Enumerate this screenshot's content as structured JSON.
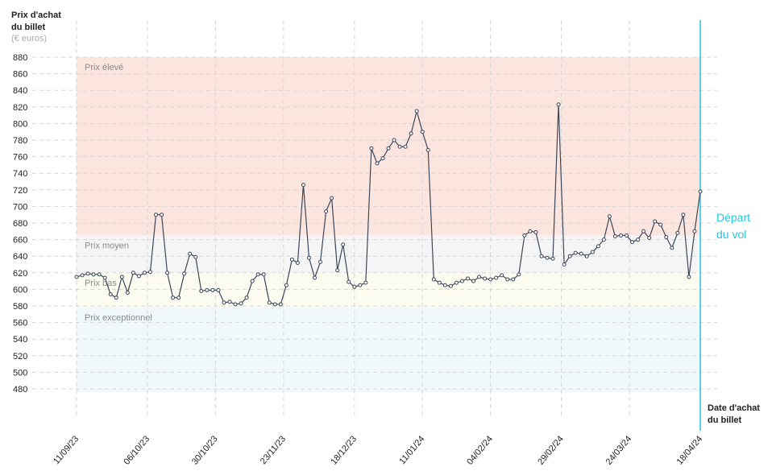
{
  "chart_data": {
    "type": "line",
    "y_label": [
      "Prix d'achat",
      "du billet"
    ],
    "y_unit": "(€ euros)",
    "x_label": [
      "Date d'achat",
      "du billet"
    ],
    "annotation": [
      "Départ",
      "du vol"
    ],
    "departure": "18/04/24",
    "color": "#3b4658",
    "annotation_color": "#29c3de",
    "grid": true,
    "bands": [
      {
        "label": "Prix élevé",
        "from": 665,
        "to": 880,
        "color": "#fde5df"
      },
      {
        "label": "Prix moyen",
        "from": 620,
        "to": 665,
        "color": "#f5f5f5"
      },
      {
        "label": "Prix bas",
        "from": 578,
        "to": 620,
        "color": "#fbfbef"
      },
      {
        "label": "Prix exceptionnel",
        "from": 476,
        "to": 578,
        "color": "#f0f8fc"
      }
    ],
    "ylim": [
      480,
      880
    ],
    "yticks": [
      480,
      500,
      520,
      540,
      560,
      580,
      600,
      620,
      640,
      660,
      680,
      700,
      720,
      740,
      760,
      780,
      800,
      820,
      840,
      860,
      880
    ],
    "xlim": [
      "11/09/23",
      "18/04/24"
    ],
    "xticks": [
      "11/09/23",
      "06/10/23",
      "30/10/23",
      "23/11/23",
      "18/12/23",
      "11/01/24",
      "04/02/24",
      "29/02/24",
      "24/03/24",
      "18/04/24"
    ],
    "x": [
      "11/09/23",
      "13/09/23",
      "15/09/23",
      "17/09/23",
      "19/09/23",
      "21/09/23",
      "23/09/23",
      "25/09/23",
      "27/09/23",
      "29/09/23",
      "01/10/23",
      "03/10/23",
      "05/10/23",
      "07/10/23",
      "09/10/23",
      "11/10/23",
      "13/10/23",
      "15/10/23",
      "17/10/23",
      "19/10/23",
      "21/10/23",
      "23/10/23",
      "25/10/23",
      "27/10/23",
      "29/10/23",
      "31/10/23",
      "02/11/23",
      "04/11/23",
      "06/11/23",
      "08/11/23",
      "10/11/23",
      "12/11/23",
      "14/11/23",
      "16/11/23",
      "18/11/23",
      "20/11/23",
      "22/11/23",
      "24/11/23",
      "26/11/23",
      "28/11/23",
      "30/11/23",
      "02/12/23",
      "04/12/23",
      "06/12/23",
      "08/12/23",
      "10/12/23",
      "12/12/23",
      "14/12/23",
      "16/12/23",
      "18/12/23",
      "20/12/23",
      "22/12/23",
      "24/12/23",
      "26/12/23",
      "28/12/23",
      "30/12/23",
      "01/01/24",
      "03/01/24",
      "05/01/24",
      "07/01/24",
      "09/01/24",
      "11/01/24",
      "13/01/24",
      "15/01/24",
      "17/01/24",
      "19/01/24",
      "21/01/24",
      "23/01/24",
      "25/01/24",
      "27/01/24",
      "29/01/24",
      "31/01/24",
      "02/02/24",
      "04/02/24",
      "06/02/24",
      "08/02/24",
      "10/02/24",
      "12/02/24",
      "14/02/24",
      "16/02/24",
      "18/02/24",
      "20/02/24",
      "22/02/24",
      "24/02/24",
      "26/02/24",
      "28/02/24",
      "01/03/24",
      "03/03/24",
      "05/03/24",
      "07/03/24",
      "09/03/24",
      "11/03/24",
      "13/03/24",
      "15/03/24",
      "17/03/24",
      "19/03/24",
      "21/03/24",
      "23/03/24",
      "25/03/24",
      "27/03/24",
      "29/03/24",
      "31/03/24",
      "02/04/24",
      "04/04/24",
      "06/04/24",
      "08/04/24",
      "10/04/24",
      "12/04/24",
      "14/04/24",
      "16/04/24",
      "18/04/24"
    ],
    "values": [
      615,
      617,
      619,
      618,
      618,
      614,
      594,
      590,
      615,
      596,
      620,
      616,
      620,
      621,
      690,
      690,
      620,
      590,
      590,
      619,
      643,
      639,
      598,
      599,
      599,
      599,
      584,
      585,
      582,
      583,
      590,
      610,
      618,
      618,
      584,
      582,
      582,
      605,
      636,
      632,
      726,
      638,
      614,
      633,
      694,
      710,
      623,
      654,
      609,
      603,
      605,
      608,
      770,
      752,
      758,
      770,
      780,
      772,
      772,
      788,
      815,
      790,
      768,
      612,
      608,
      605,
      604,
      608,
      610,
      613,
      610,
      615,
      613,
      612,
      614,
      617,
      612,
      612,
      618,
      665,
      670,
      669,
      640,
      638,
      637,
      823,
      630,
      640,
      644,
      643,
      640,
      645,
      652,
      660,
      688,
      664,
      665,
      665,
      657,
      660,
      670,
      662,
      682,
      678,
      663,
      650,
      668,
      690,
      615,
      670,
      718
    ]
  }
}
